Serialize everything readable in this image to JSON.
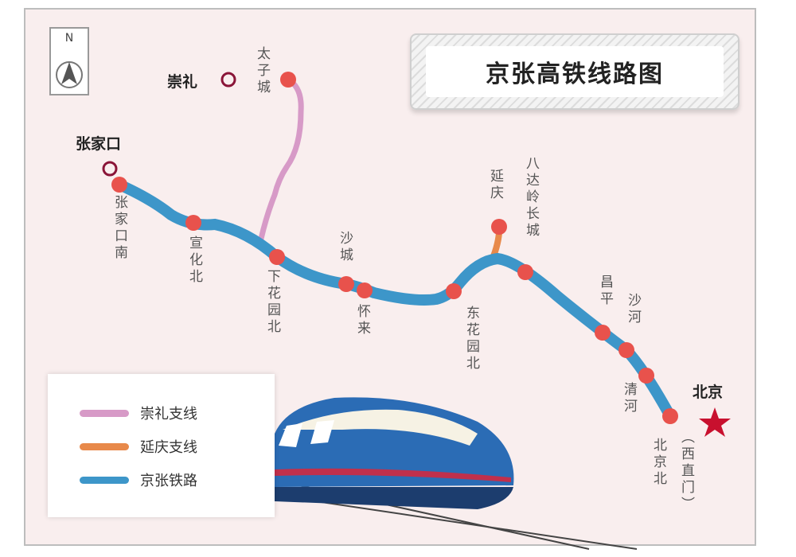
{
  "title": "京张高铁线路图",
  "compass": {
    "label": "N",
    "icon": "north-arrow-icon"
  },
  "cities": [
    {
      "name": "崇礼"
    },
    {
      "name": "张家口"
    },
    {
      "name": "北京",
      "icon": "star-icon"
    }
  ],
  "stations": [
    {
      "name": "张家口南"
    },
    {
      "name": "宣化北"
    },
    {
      "name": "下花园北"
    },
    {
      "name": "沙城"
    },
    {
      "name": "怀来"
    },
    {
      "name": "东花园北"
    },
    {
      "name": "八达岭长城"
    },
    {
      "name": "昌平"
    },
    {
      "name": "沙河"
    },
    {
      "name": "清河"
    },
    {
      "name": "北京北"
    },
    {
      "name": "（西直门）"
    },
    {
      "name": "太子城"
    },
    {
      "name": "延庆"
    }
  ],
  "legend": [
    {
      "label": "崇礼支线",
      "color": "#d79ac7"
    },
    {
      "label": "延庆支线",
      "color": "#e8894a"
    },
    {
      "label": "京张铁路",
      "color": "#3d96c9"
    }
  ],
  "colors": {
    "background": "#f9eeee",
    "station": "#e8524c",
    "city_ring": "#8a1538",
    "star": "#c8102e"
  }
}
